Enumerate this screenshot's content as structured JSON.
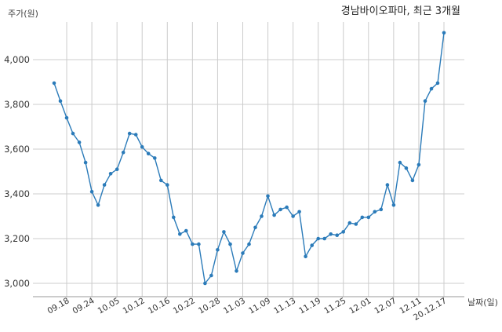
{
  "chart_data": {
    "type": "line",
    "title": "경남바이오파마, 최근 3개월",
    "ylabel": "주가(원)",
    "xlabel": "날짜(일)",
    "ylim": [
      2950,
      4180
    ],
    "yticks": [
      3000,
      3200,
      3400,
      3600,
      3800,
      4000
    ],
    "ytick_labels": [
      "3,000",
      "3,200",
      "3,400",
      "3,600",
      "3,800",
      "4,000"
    ],
    "grid": true,
    "line_color": "#2b7bb9",
    "x_tick_labels": [
      "09.18",
      "09.24",
      "10.05",
      "10.12",
      "10.16",
      "10.22",
      "10.28",
      "11.03",
      "11.09",
      "11.13",
      "11.19",
      "11.25",
      "12.01",
      "12.07",
      "12.11",
      "20.12.17"
    ],
    "x_tick_indices": [
      2,
      6,
      10,
      14,
      18,
      22,
      26,
      30,
      34,
      38,
      42,
      46,
      50,
      54,
      58,
      62
    ],
    "series": [
      {
        "values": [
          3895,
          3815,
          3740,
          3670,
          3630,
          3540,
          3410,
          3350,
          3440,
          3490,
          3510,
          3585,
          3670,
          3665,
          3610,
          3580,
          3560,
          3460,
          3440,
          3295,
          3220,
          3235,
          3175,
          3175,
          3000,
          3035,
          3150,
          3230,
          3175,
          3055,
          3135,
          3175,
          3250,
          3300,
          3390,
          3305,
          3330,
          3340,
          3300,
          3320,
          3120,
          3170,
          3200,
          3200,
          3220,
          3215,
          3230,
          3270,
          3265,
          3295,
          3295,
          3320,
          3330,
          3440,
          3350,
          3540,
          3515,
          3460,
          3530,
          3815,
          3870,
          3895,
          4120
        ]
      }
    ]
  }
}
